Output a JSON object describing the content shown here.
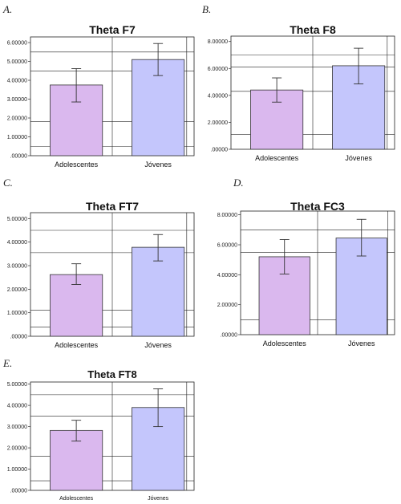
{
  "panels": [
    {
      "letter": "A."
    },
    {
      "letter": "B."
    },
    {
      "letter": "C."
    },
    {
      "letter": "D."
    },
    {
      "letter": "E."
    }
  ],
  "colors": {
    "adolescentes": "#dab8ee",
    "jovenes": "#c4c6fc",
    "bar_stroke": "#333333",
    "grid": "#222222"
  },
  "chart_data": [
    {
      "type": "bar",
      "title": "Theta F7",
      "categories": [
        "Adolescentes",
        "Jóvenes"
      ],
      "values": [
        3.75,
        5.1
      ],
      "error_low": [
        2.85,
        4.25
      ],
      "error_high": [
        4.62,
        5.95
      ],
      "yticks": [
        ".00000",
        "1.00000",
        "2.00000",
        "3.00000",
        "4.00000",
        "5.00000",
        "6.00000"
      ],
      "ylim": [
        0,
        6.3
      ],
      "grid_y": [
        0.5,
        1.8,
        4.5,
        5.5
      ],
      "grid_x": [
        0.5
      ],
      "legend": "none"
    },
    {
      "type": "bar",
      "title": "Theta F8",
      "categories": [
        "Adolescentes",
        "Jóvenes"
      ],
      "values": [
        4.4,
        6.2
      ],
      "error_low": [
        3.5,
        4.85
      ],
      "error_high": [
        5.3,
        7.5
      ],
      "yticks": [
        ".00000",
        "2.00000",
        "4.00000",
        "6.00000",
        "8.00000"
      ],
      "ylim": [
        0,
        8.4
      ],
      "grid_y": [
        1.1,
        4.3,
        6.1,
        7.0
      ],
      "grid_x": [
        0.5
      ],
      "legend": "none"
    },
    {
      "type": "bar",
      "title": "Theta FT7",
      "categories": [
        "Adolescentes",
        "Jóvenes"
      ],
      "values": [
        2.62,
        3.78
      ],
      "error_low": [
        2.2,
        3.2
      ],
      "error_high": [
        3.08,
        4.32
      ],
      "yticks": [
        ".00000",
        "1.00000",
        "2.00000",
        "3.00000",
        "4.00000",
        "5.00000"
      ],
      "ylim": [
        0,
        5.25
      ],
      "grid_y": [
        0.4,
        1.1,
        3.55,
        4.5
      ],
      "grid_x": [
        0.5
      ],
      "legend": "none"
    },
    {
      "type": "bar",
      "title": "Theta FC3",
      "categories": [
        "Adolescentes",
        "Jóvenes"
      ],
      "values": [
        5.2,
        6.45
      ],
      "error_low": [
        4.05,
        5.25
      ],
      "error_high": [
        6.35,
        7.7
      ],
      "yticks": [
        ".00000",
        "2.00000",
        "4.00000",
        "6.00000",
        "8.00000"
      ],
      "ylim": [
        0,
        8.25
      ],
      "grid_y": [
        1.0,
        5.5,
        7.0
      ],
      "grid_x": [
        0.5
      ],
      "legend": "none"
    },
    {
      "type": "bar",
      "title": "Theta FT8",
      "categories": [
        "Adolescentes",
        "Jóvenes"
      ],
      "values": [
        2.82,
        3.9
      ],
      "error_low": [
        2.32,
        3.0
      ],
      "error_high": [
        3.3,
        4.78
      ],
      "yticks": [
        ".00000",
        "1.00000",
        "2.00000",
        "3.00000",
        "4.00000",
        "5.00000"
      ],
      "ylim": [
        0,
        5.1
      ],
      "grid_y": [
        0.45,
        1.6,
        3.5,
        4.5
      ],
      "grid_x": [
        0.5
      ],
      "legend": "none"
    }
  ]
}
